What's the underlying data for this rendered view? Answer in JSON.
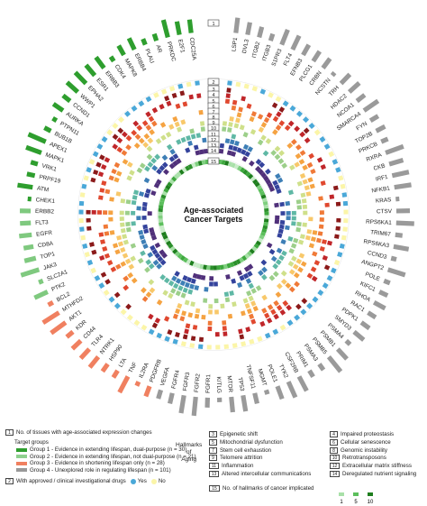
{
  "center_title": [
    "Age-associated",
    "Cancer Targets"
  ],
  "ring_numbers": [
    "1",
    "2",
    "3",
    "4",
    "5",
    "6",
    "7",
    "8",
    "9",
    "10",
    "11",
    "12",
    "13",
    "14",
    "15"
  ],
  "genes": [
    "LSP1",
    "DVL3",
    "ITGB2",
    "ITGB3",
    "S1PR3",
    "FLT4",
    "EFNB3",
    "PLCG1",
    "CRBN",
    "NCSTN",
    "TRH",
    "HDAC2",
    "NCOA1",
    "SMARCA4",
    "FYN",
    "TOP2B",
    "PRKCB",
    "RXRA",
    "CKB",
    "IRF1",
    "NFKB1",
    "KRAS",
    "CTSV",
    "RPS6KA1",
    "TRIM67",
    "RPS6KA3",
    "CCND3",
    "ANGPT2",
    "POLE",
    "KIFC1",
    "RHOA",
    "RAC1",
    "PDPK1",
    "SMYD3",
    "PSMA4",
    "PSMB1",
    "PSMB5",
    "PSMA3",
    "PRIM1",
    "CSF2RB",
    "TYK2",
    "POLE1",
    "MGMT",
    "TNFSF11",
    "TP53",
    "MTOR",
    "KITLG",
    "FGFR1",
    "FGFR2",
    "FGFR3",
    "FGFR4",
    "VEGFA",
    "PDGFRB",
    "IL2RA",
    "TNF",
    "LTA",
    "HSP90",
    "NTRK1",
    "TLR4",
    "CD44",
    "KDR",
    "AKT1",
    "MTHFD2",
    "BCL2",
    "PTK2",
    "SLC2A1",
    "JAK3",
    "TOP1",
    "CD8A",
    "EGFR",
    "FLT3",
    "ERBB2",
    "CHEK1",
    "ATM",
    "PRPF19",
    "VRK1",
    "MAPK1",
    "APEX1",
    "BUB1B",
    "PTPN11",
    "AURKA",
    "CCND1",
    "WWP1",
    "EPHA2",
    "ESR1",
    "ERBB3",
    "CDK4",
    "MAPK8",
    "ERBB4",
    "PLAU",
    "AR",
    "PRKDC",
    "E2F1",
    "CDC25A"
  ],
  "hallmarks_title": [
    "Hallmarks",
    "of",
    "Aging"
  ],
  "legend": {
    "ring1": "No. of tissues with age-associated expression changes",
    "target_groups_title": "Target groups",
    "groups": [
      {
        "label": "Group 1 - Evidence in extending lifespan, dual-purpose (n = 30)",
        "color": "#2e9e2e"
      },
      {
        "label": "Group 2 - Evidence in extending lifespan, not dual-purpose (n = 21)",
        "color": "#8fd08f"
      },
      {
        "label": "Group 3 - Evidence in shortening lifespan only (n = 28)",
        "color": "#f08060"
      },
      {
        "label": "Group 4 - Unexplored role in regulating lifespan (n = 101)",
        "color": "#999999"
      }
    ],
    "ring2": "With approved / clinical investigational drugs",
    "yes": "Yes",
    "no": "No",
    "yes_color": "#4aa8d8",
    "no_color": "#fbf5a8",
    "hallmarks": [
      {
        "n": "3",
        "label": "Epigenetic shift"
      },
      {
        "n": "4",
        "label": "Impaired proteostasis"
      },
      {
        "n": "5",
        "label": "Mitochondrial dysfunction"
      },
      {
        "n": "6",
        "label": "Cellular senescence"
      },
      {
        "n": "7",
        "label": "Stem cell exhaustion"
      },
      {
        "n": "8",
        "label": "Genomic instability"
      },
      {
        "n": "9",
        "label": "Telomere attrition"
      },
      {
        "n": "10",
        "label": "Retrotransposons"
      },
      {
        "n": "11",
        "label": "Inflammation"
      },
      {
        "n": "12",
        "label": "Extracellular matrix stiffness"
      },
      {
        "n": "13",
        "label": "Altered intercellular communications"
      },
      {
        "n": "14",
        "label": "Deregulated nutrient signaling"
      }
    ],
    "ring15": "No. of hallmarks of cancer implicated",
    "scale": [
      "1",
      "5",
      "10"
    ]
  }
}
